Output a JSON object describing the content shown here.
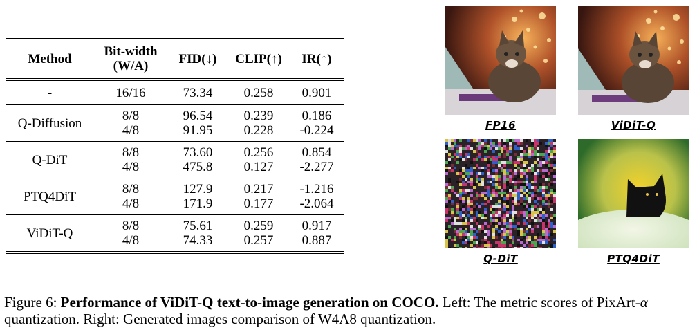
{
  "table": {
    "headers": {
      "method": "Method",
      "bitwidth_line1": "Bit-width",
      "bitwidth_line2": "(W/A)",
      "fid": "FID(↓)",
      "clip": "CLIP(↑)",
      "ir": "IR(↑)"
    },
    "rows": [
      {
        "method": "-",
        "entries": [
          {
            "bits": "16/16",
            "fid": "73.34",
            "clip": "0.258",
            "ir": "0.901"
          }
        ]
      },
      {
        "method": "Q-Diffusion",
        "entries": [
          {
            "bits": "8/8",
            "fid": "96.54",
            "clip": "0.239",
            "ir": "0.186"
          },
          {
            "bits": "4/8",
            "fid": "91.95",
            "clip": "0.228",
            "ir": "-0.224"
          }
        ]
      },
      {
        "method": "Q-DiT",
        "entries": [
          {
            "bits": "8/8",
            "fid": "73.60",
            "clip": "0.256",
            "ir": "0.854"
          },
          {
            "bits": "4/8",
            "fid": "475.8",
            "clip": "0.127",
            "ir": "-2.277"
          }
        ]
      },
      {
        "method": "PTQ4DiT",
        "entries": [
          {
            "bits": "8/8",
            "fid": "127.9",
            "clip": "0.217",
            "ir": "-1.216"
          },
          {
            "bits": "4/8",
            "fid": "171.9",
            "clip": "0.177",
            "ir": "-2.064"
          }
        ]
      },
      {
        "method": "ViDiT-Q",
        "entries": [
          {
            "bits": "8/8",
            "fid": "75.61",
            "clip": "0.259",
            "ir": "0.917"
          },
          {
            "bits": "4/8",
            "fid": "74.33",
            "clip": "0.257",
            "ir": "0.887"
          }
        ]
      }
    ]
  },
  "images": {
    "fp16": "FP16",
    "vidit": "ViDiT-Q",
    "qdit": "Q-DiT",
    "ptq": "PTQ4DiT"
  },
  "caption": {
    "figure_label": "Figure 6:",
    "bold_title": "Performance of ViDiT-Q text-to-image generation on COCO.",
    "text_part1": "Left: The metric scores of PixArt-",
    "alpha": "α",
    "text_part2": "quantization. Right: Generated images comparison of W4A8 quantization."
  }
}
